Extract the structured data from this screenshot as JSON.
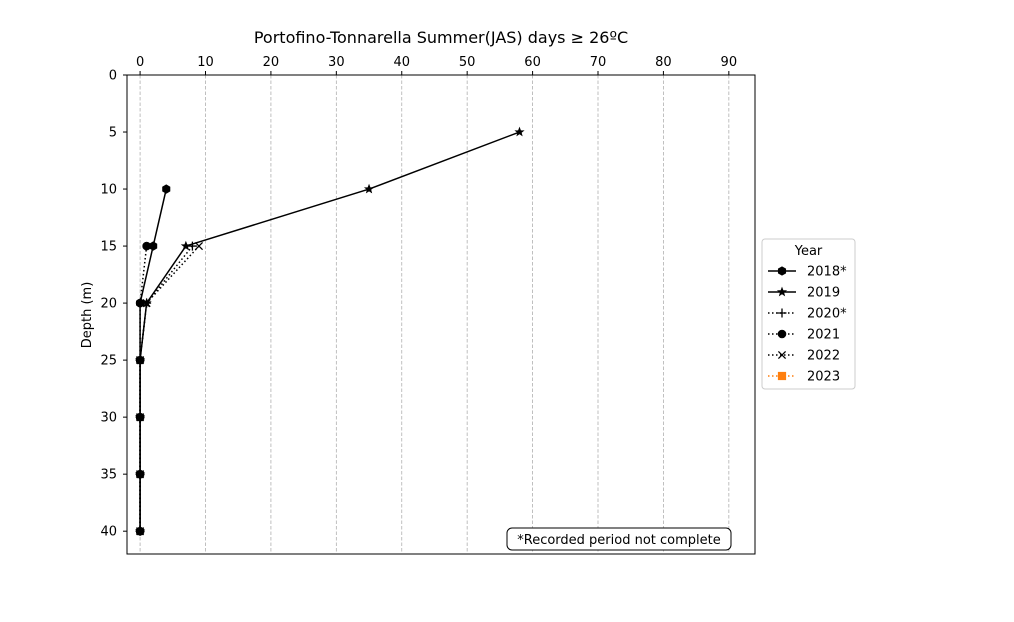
{
  "chart_data": {
    "type": "line",
    "title": "Portofino-Tonnarella Summer(JAS) days ≥ 26ºC",
    "xlabel": "",
    "ylabel": "Depth (m)",
    "x_axis_position": "top",
    "y_axis_inverted": true,
    "xlim": [
      -2,
      94
    ],
    "ylim": [
      0,
      42
    ],
    "xticks": [
      0,
      10,
      20,
      30,
      40,
      50,
      60,
      70,
      80,
      90
    ],
    "yticks": [
      0,
      5,
      10,
      15,
      20,
      25,
      30,
      35,
      40
    ],
    "grid": "vertical dashed",
    "legend": {
      "title": "Year",
      "placement": "right, outside"
    },
    "annotation": "*Recorded period not complete",
    "series": [
      {
        "name": "2018*",
        "color": "#000000",
        "linestyle": "solid",
        "marker": "hexagon",
        "depth": [
          10,
          15,
          20,
          25,
          30,
          35,
          40
        ],
        "days": [
          4,
          2,
          0,
          0,
          0,
          0,
          0
        ]
      },
      {
        "name": "2019",
        "color": "#000000",
        "linestyle": "solid",
        "marker": "star",
        "depth": [
          5,
          10,
          15,
          20,
          25,
          30,
          35,
          40
        ],
        "days": [
          58,
          35,
          7,
          1,
          0,
          0,
          0,
          0
        ]
      },
      {
        "name": "2020*",
        "color": "#000000",
        "linestyle": "dotted",
        "marker": "plus",
        "depth": [
          15,
          20,
          25,
          30,
          35,
          40
        ],
        "days": [
          8,
          1,
          0,
          0,
          0,
          0
        ]
      },
      {
        "name": "2021",
        "color": "#000000",
        "linestyle": "dotted",
        "marker": "circle",
        "depth": [
          15,
          20,
          25,
          30,
          35,
          40
        ],
        "days": [
          1,
          0,
          0,
          0,
          0,
          0
        ]
      },
      {
        "name": "2022",
        "color": "#000000",
        "linestyle": "dotted",
        "marker": "x",
        "depth": [
          15,
          20,
          25,
          30,
          35,
          40
        ],
        "days": [
          9,
          1,
          0,
          0,
          0,
          0
        ]
      },
      {
        "name": "2023",
        "color": "#ff7f0e",
        "linestyle": "dotted",
        "marker": "square",
        "depth": [],
        "days": []
      }
    ]
  }
}
